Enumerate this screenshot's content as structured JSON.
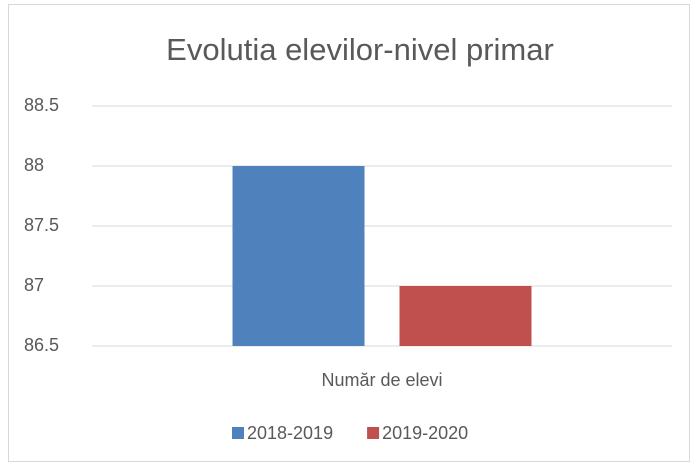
{
  "chart_data": {
    "type": "bar",
    "title": "Evolutia elevilor-nivel primar",
    "categories": [
      "Număr de elevi"
    ],
    "series": [
      {
        "name": "2018-2019",
        "color": "#4f81bd",
        "values": [
          88
        ]
      },
      {
        "name": "2019-2020",
        "color": "#c0504d",
        "values": [
          87
        ]
      }
    ],
    "ylim": [
      86.5,
      88.5
    ],
    "yticks": [
      86.5,
      87,
      87.5,
      88,
      88.5
    ],
    "grid": true,
    "legend": "bottom"
  }
}
